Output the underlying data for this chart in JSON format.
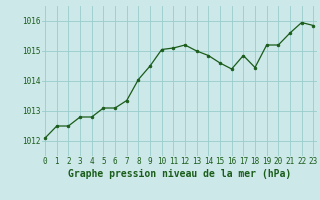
{
  "x": [
    0,
    1,
    2,
    3,
    4,
    5,
    6,
    7,
    8,
    9,
    10,
    11,
    12,
    13,
    14,
    15,
    16,
    17,
    18,
    19,
    20,
    21,
    22,
    23
  ],
  "y": [
    1012.1,
    1012.5,
    1012.5,
    1012.8,
    1012.8,
    1013.1,
    1013.1,
    1013.35,
    1014.05,
    1014.5,
    1015.05,
    1015.1,
    1015.2,
    1015.0,
    1014.85,
    1014.6,
    1014.4,
    1014.85,
    1014.45,
    1015.2,
    1015.2,
    1015.6,
    1015.95,
    1015.85
  ],
  "line_color": "#1a5c1a",
  "marker": "o",
  "marker_size": 2.0,
  "bg_color": "#cce8e8",
  "grid_color": "#99cccc",
  "xlabel": "Graphe pression niveau de la mer (hPa)",
  "xlabel_color": "#1a5c1a",
  "xlabel_fontsize": 7.0,
  "tick_label_color": "#1a5c1a",
  "tick_fontsize": 5.5,
  "ylim": [
    1011.5,
    1016.5
  ],
  "yticks": [
    1012,
    1013,
    1014,
    1015,
    1016
  ],
  "xlim": [
    -0.3,
    23.3
  ],
  "xticks": [
    0,
    1,
    2,
    3,
    4,
    5,
    6,
    7,
    8,
    9,
    10,
    11,
    12,
    13,
    14,
    15,
    16,
    17,
    18,
    19,
    20,
    21,
    22,
    23
  ]
}
